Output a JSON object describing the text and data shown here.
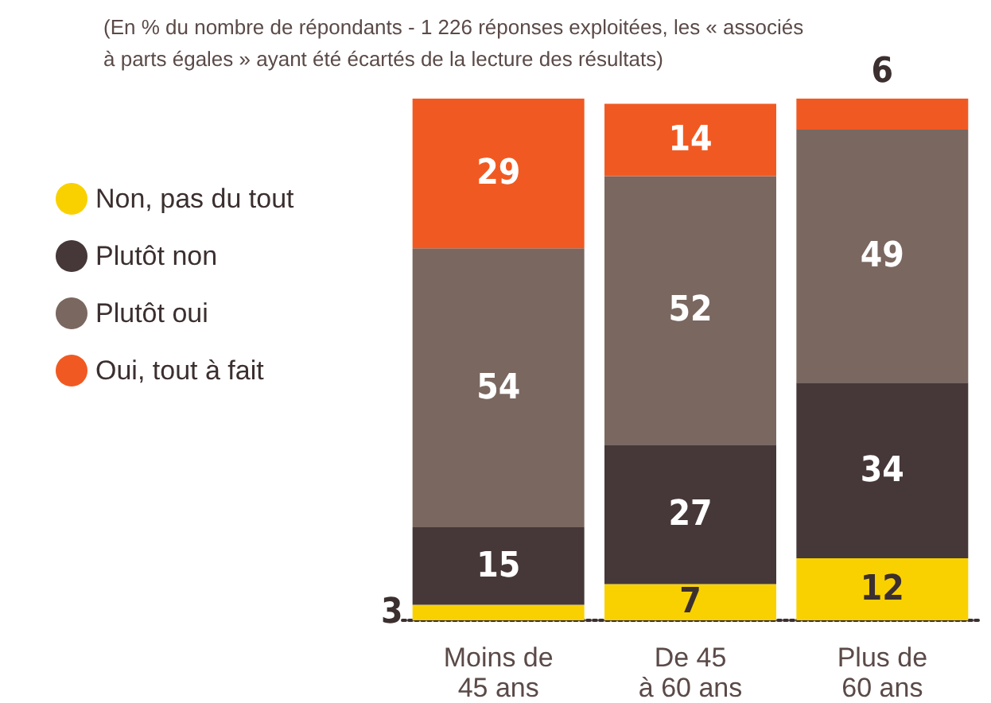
{
  "chart_data": {
    "type": "bar",
    "subtitle": "(En % du nombre de répondants - 1 226 réponses exploitées, les « associés à parts égales » ayant été écartés de la lecture des résultats)",
    "categories": [
      "Moins de\n45 ans",
      "De 45\nà 60 ans",
      "Plus de\n60 ans"
    ],
    "stacked": true,
    "data_labels": true,
    "legend": "left",
    "series": [
      {
        "name": "Non, pas du tout",
        "color": "#f9d100",
        "values": [
          3,
          7,
          12
        ]
      },
      {
        "name": "Plutôt non",
        "color": "#463838",
        "values": [
          15,
          27,
          34
        ]
      },
      {
        "name": "Plutôt oui",
        "color": "#7a6760",
        "values": [
          54,
          52,
          49
        ]
      },
      {
        "name": "Oui, tout à fait",
        "color": "#f05a22",
        "values": [
          29,
          14,
          6
        ]
      }
    ]
  }
}
